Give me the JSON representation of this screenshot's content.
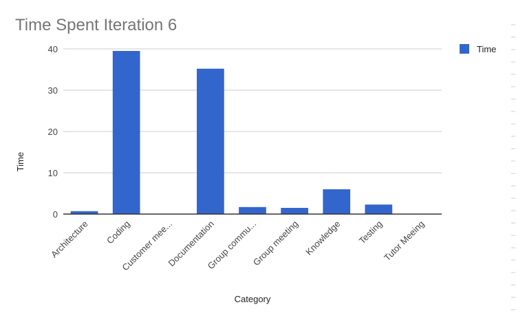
{
  "chart_data": {
    "type": "bar",
    "title": "Time Spent Iteration 6",
    "xlabel": "Category",
    "ylabel": "Time",
    "categories": [
      "Architecture",
      "Coding",
      "Customer mee...",
      "Documentation",
      "Group commu...",
      "Group meeting",
      "Knowledge",
      "Testing",
      "Tutor Meeing"
    ],
    "series": [
      {
        "name": "Time",
        "values": [
          0.7,
          39.5,
          0,
          35.2,
          1.7,
          1.5,
          6,
          2.3,
          0
        ]
      }
    ],
    "yticks": [
      "0",
      "10",
      "20",
      "30",
      "40"
    ],
    "ylim": [
      0,
      40
    ],
    "grid": true,
    "legend": "right",
    "bar_color": "#3366cc"
  }
}
